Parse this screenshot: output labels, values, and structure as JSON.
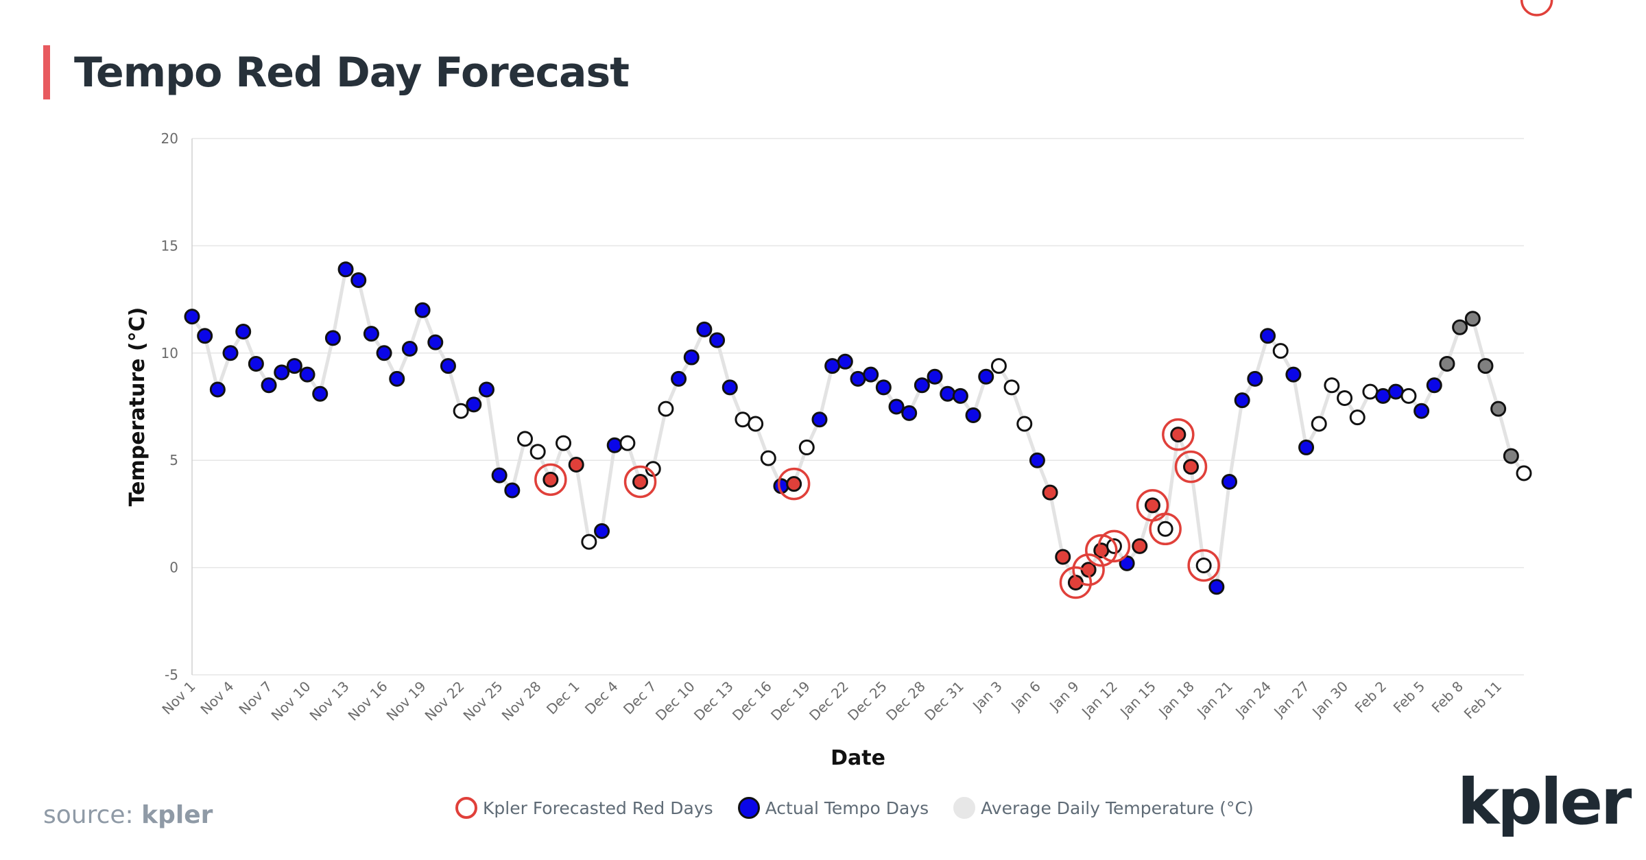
{
  "title": "Tempo Red Day Forecast",
  "source_prefix": "source:",
  "source_name": "kpler",
  "logo_text": "kpler",
  "legend": {
    "forecast": "Kpler Forecasted Red Days",
    "actual": "Actual Tempo Days",
    "average": "Average Daily Temperature (°C)"
  },
  "colors": {
    "blue": "#0a06e8",
    "red": "#e0403a",
    "white": "#ffffff",
    "gray": "#808080",
    "line": "#e3e3e3",
    "title_accent": "#e85a5f"
  },
  "chart_data": {
    "type": "scatter",
    "title": "Tempo Red Day Forecast",
    "xlabel": "Date",
    "ylabel": "Temperature (°C)",
    "ylim": [
      -5,
      20
    ],
    "yticks": [
      -5,
      0,
      5,
      10,
      15,
      20
    ],
    "grid": true,
    "legend_position": "bottom",
    "x_tick_labels": [
      "Nov 1",
      "Nov 4",
      "Nov 7",
      "Nov 10",
      "Nov 13",
      "Nov 16",
      "Nov 19",
      "Nov 22",
      "Nov 25",
      "Nov 28",
      "Dec 1",
      "Dec 4",
      "Dec 7",
      "Dec 10",
      "Dec 13",
      "Dec 16",
      "Dec 19",
      "Dec 22",
      "Dec 25",
      "Dec 28",
      "Dec 31",
      "Jan 3",
      "Jan 6",
      "Jan 9",
      "Jan 12",
      "Jan 15",
      "Jan 18",
      "Jan 21",
      "Jan 24",
      "Jan 27",
      "Jan 30",
      "Feb 2",
      "Feb 5",
      "Feb 8",
      "Feb 11"
    ],
    "series": [
      {
        "name": "Average Daily Temperature (°C)",
        "start_date": "Nov 1",
        "values": [
          11.7,
          10.8,
          8.3,
          10.0,
          11.0,
          9.5,
          8.5,
          9.1,
          9.4,
          9.0,
          8.1,
          10.7,
          13.9,
          13.4,
          10.9,
          10.0,
          8.8,
          10.2,
          12.0,
          10.5,
          9.4,
          7.3,
          7.6,
          8.3,
          4.3,
          3.6,
          6.0,
          5.4,
          4.1,
          5.8,
          4.8,
          1.2,
          1.7,
          5.7,
          5.8,
          4.0,
          4.6,
          7.4,
          8.8,
          9.8,
          11.1,
          10.6,
          8.4,
          6.9,
          6.7,
          5.1,
          3.8,
          3.9,
          5.6,
          6.9,
          9.4,
          9.6,
          8.8,
          9.0,
          8.4,
          7.5,
          7.2,
          8.5,
          8.9,
          8.1,
          8.0,
          7.1,
          8.9,
          9.4,
          8.4,
          6.7,
          5.0,
          3.5,
          0.5,
          -0.7,
          -0.1,
          0.8,
          1.0,
          0.2,
          1.0,
          2.9,
          1.8,
          6.2,
          4.7,
          0.1,
          -0.9,
          4.0,
          7.8,
          8.8,
          10.8,
          10.1,
          9.0,
          5.6,
          6.7,
          8.5,
          7.9,
          7.0,
          8.2,
          8.0,
          8.2,
          8.0,
          7.3,
          8.5,
          9.5,
          11.2,
          11.6,
          9.4,
          7.4,
          5.2,
          4.4
        ]
      },
      {
        "name": "Day classification",
        "codes": "BBBBBBBBBBBBBBBBBBBBBWBBBBWWRWRWBBWRWWBBBBBWWWBRWBBBBBBBBBBBBBBWWWBRRRRRWBRRWRRWBBBBBWBBWWWWWBBWBBGGGGGG",
        "legend": {
          "B": "blue",
          "W": "white",
          "R": "red",
          "G": "gray"
        }
      },
      {
        "name": "Kpler Forecasted Red Days",
        "indices": [
          28,
          35,
          47,
          69,
          70,
          71,
          72,
          75,
          76,
          77,
          78,
          79,
          105
        ]
      }
    ]
  }
}
